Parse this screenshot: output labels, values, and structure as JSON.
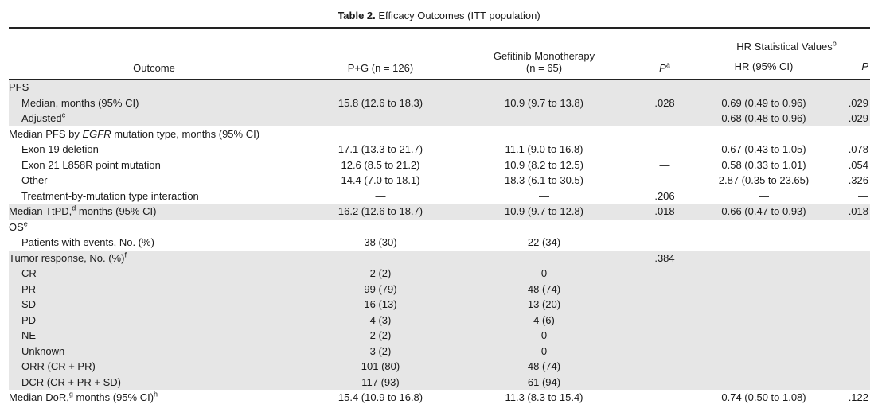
{
  "caption": {
    "label": "Table 2.",
    "title": "Efficacy Outcomes (ITT population)"
  },
  "header": {
    "outcome": "Outcome",
    "pg": "P+G (n = 126)",
    "gef_line1": "Gefitinib Monotherapy",
    "gef_line2": "(n = 65)",
    "p": "P",
    "p_sup": "a",
    "hr_group": "HR Statistical Values",
    "hr_group_sup": "b",
    "hr_ci": "HR (95% CI)",
    "hr_p": "P"
  },
  "rows": {
    "pfs": {
      "label": "PFS"
    },
    "pfs_median": {
      "label": "Median, months (95% CI)",
      "pg": "15.8 (12.6 to 18.3)",
      "gef": "10.9 (9.7 to 13.8)",
      "p": ".028",
      "hr": "0.69 (0.49 to 0.96)",
      "hrp": ".029"
    },
    "adjusted": {
      "label": "Adjusted",
      "sup": "c",
      "pg": "—",
      "gef": "—",
      "p": "—",
      "hr": "0.68 (0.48 to 0.96)",
      "hrp": ".029"
    },
    "egfr_header": {
      "pre": "Median PFS by ",
      "ital": "EGFR",
      "post": " mutation type, months (95% CI)"
    },
    "exon19": {
      "label": "Exon 19 deletion",
      "pg": "17.1 (13.3 to 21.7)",
      "gef": "11.1 (9.0 to 16.8)",
      "p": "—",
      "hr": "0.67 (0.43 to 1.05)",
      "hrp": ".078"
    },
    "exon21": {
      "label": "Exon 21 L858R point mutation",
      "pg": "12.6 (8.5 to 21.2)",
      "gef": "10.9 (8.2 to 12.5)",
      "p": "—",
      "hr": "0.58 (0.33 to 1.01)",
      "hrp": ".054"
    },
    "other": {
      "label": "Other",
      "pg": "14.4 (7.0 to 18.1)",
      "gef": "18.3 (6.1 to 30.5)",
      "p": "—",
      "hr": "2.87 (0.35 to 23.65)",
      "hrp": ".326"
    },
    "interaction": {
      "label": "Treatment-by-mutation type interaction",
      "pg": "—",
      "gef": "—",
      "p": ".206",
      "hr": "—",
      "hrp": "—"
    },
    "ttpd": {
      "label_pre": "Median TtPD,",
      "sup": "d",
      "label_post": " months (95% CI)",
      "pg": "16.2 (12.6 to 18.7)",
      "gef": "10.9 (9.7 to 12.8)",
      "p": ".018",
      "hr": "0.66 (0.47 to 0.93)",
      "hrp": ".018"
    },
    "os": {
      "label": "OS",
      "sup": "e"
    },
    "os_events": {
      "label": "Patients with events, No. (%)",
      "pg": "38 (30)",
      "gef": "22 (34)",
      "p": "—",
      "hr": "—",
      "hrp": "—"
    },
    "tumor": {
      "label": "Tumor response, No. (%)",
      "sup": "f",
      "p": ".384"
    },
    "cr": {
      "label": "CR",
      "pg": "2 (2)",
      "gef": "0",
      "p": "—",
      "hr": "—",
      "hrp": "—"
    },
    "pr": {
      "label": "PR",
      "pg": "99 (79)",
      "gef": "48 (74)",
      "p": "—",
      "hr": "—",
      "hrp": "—"
    },
    "sd": {
      "label": "SD",
      "pg": "16 (13)",
      "gef": "13 (20)",
      "p": "—",
      "hr": "—",
      "hrp": "—"
    },
    "pd": {
      "label": "PD",
      "pg": "4 (3)",
      "gef": "4 (6)",
      "p": "—",
      "hr": "—",
      "hrp": "—"
    },
    "ne": {
      "label": "NE",
      "pg": "2 (2)",
      "gef": "0",
      "p": "—",
      "hr": "—",
      "hrp": "—"
    },
    "unknown": {
      "label": "Unknown",
      "pg": "3 (2)",
      "gef": "0",
      "p": "—",
      "hr": "—",
      "hrp": "—"
    },
    "orr": {
      "label": "ORR (CR + PR)",
      "pg": "101 (80)",
      "gef": "48 (74)",
      "p": "—",
      "hr": "—",
      "hrp": "—"
    },
    "dcr": {
      "label": "DCR (CR + PR + SD)",
      "pg": "117 (93)",
      "gef": "61 (94)",
      "p": "—",
      "hr": "—",
      "hrp": "—"
    },
    "dor": {
      "label_pre": "Median DoR,",
      "sup": "g",
      "label_post": " months (95% CI)",
      "sup2": "h",
      "pg": "15.4 (10.9 to 16.8)",
      "gef": "11.3 (8.3 to 15.4)",
      "p": "—",
      "hr": "0.74 (0.50 to 1.08)",
      "hrp": ".122"
    }
  }
}
